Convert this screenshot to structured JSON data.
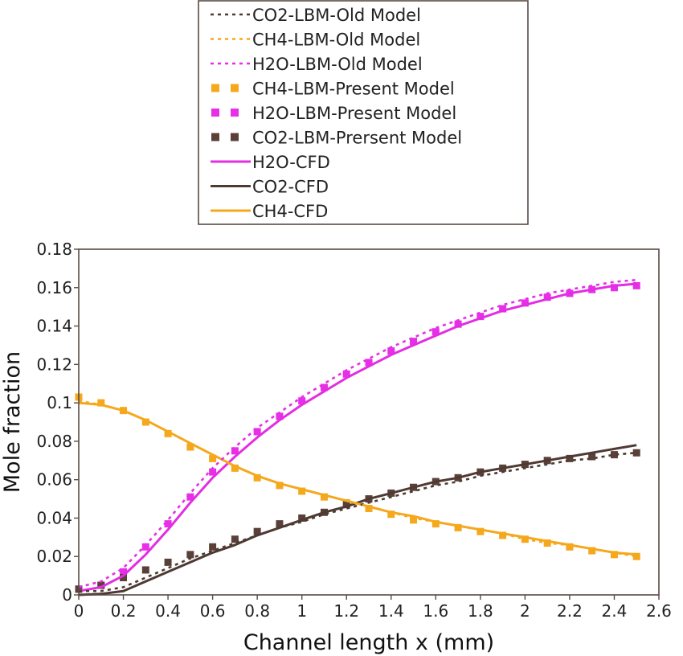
{
  "chart_data": {
    "type": "line",
    "xlabel": "Channel length x (mm)",
    "ylabel": "Mole fraction",
    "xlim": [
      0,
      2.6
    ],
    "ylim": [
      0,
      0.18
    ],
    "xticks": [
      0,
      0.2,
      0.4,
      0.6,
      0.8,
      1,
      1.2,
      1.4,
      1.6,
      1.8,
      2,
      2.2,
      2.4,
      2.6
    ],
    "yticks": [
      0,
      0.02,
      0.04,
      0.06,
      0.08,
      0.1,
      0.12,
      0.14,
      0.16,
      0.18
    ],
    "ytick_labels": [
      "0",
      "0.02",
      "0.04",
      "0.06",
      "0.08",
      "0.1",
      "0.12",
      "0.14",
      "0.16",
      "0.18"
    ],
    "grid": false,
    "legend_position": "top-center",
    "x": [
      0,
      0.1,
      0.2,
      0.3,
      0.4,
      0.5,
      0.6,
      0.7,
      0.8,
      0.9,
      1.0,
      1.1,
      1.2,
      1.3,
      1.4,
      1.5,
      1.6,
      1.7,
      1.8,
      1.9,
      2.0,
      2.1,
      2.2,
      2.3,
      2.4,
      2.5
    ],
    "series": [
      {
        "name": "CO2-LBM-Old Model",
        "color": "#4d3b34",
        "style": "dotted",
        "values": [
          0.002,
          0.002,
          0.004,
          0.009,
          0.014,
          0.019,
          0.023,
          0.027,
          0.031,
          0.035,
          0.038,
          0.042,
          0.045,
          0.048,
          0.051,
          0.054,
          0.057,
          0.059,
          0.062,
          0.064,
          0.066,
          0.068,
          0.07,
          0.071,
          0.073,
          0.074
        ]
      },
      {
        "name": "CH4-LBM-Old Model",
        "color": "#f5a81c",
        "style": "dotted",
        "values": [
          0.101,
          0.099,
          0.096,
          0.091,
          0.085,
          0.079,
          0.073,
          0.067,
          0.062,
          0.058,
          0.055,
          0.052,
          0.049,
          0.046,
          0.043,
          0.04,
          0.038,
          0.036,
          0.034,
          0.032,
          0.029,
          0.027,
          0.026,
          0.024,
          0.022,
          0.02
        ]
      },
      {
        "name": "H2O-LBM-Old Model",
        "color": "#e62fe6",
        "style": "dotted",
        "values": [
          0.004,
          0.007,
          0.014,
          0.026,
          0.039,
          0.053,
          0.066,
          0.077,
          0.087,
          0.095,
          0.103,
          0.11,
          0.117,
          0.123,
          0.129,
          0.134,
          0.139,
          0.143,
          0.147,
          0.151,
          0.154,
          0.157,
          0.159,
          0.161,
          0.163,
          0.164
        ]
      },
      {
        "name": "CH4-LBM-Present Model",
        "color": "#f5a81c",
        "style": "square",
        "values": [
          0.103,
          0.1,
          0.096,
          0.09,
          0.084,
          0.077,
          0.071,
          0.066,
          0.061,
          0.057,
          0.054,
          0.051,
          0.048,
          0.045,
          0.042,
          0.039,
          0.037,
          0.035,
          0.033,
          0.031,
          0.029,
          0.027,
          0.025,
          0.023,
          0.021,
          0.02
        ]
      },
      {
        "name": "H2O-LBM-Present Model",
        "color": "#e62fe6",
        "style": "square",
        "values": [
          0.003,
          0.005,
          0.012,
          0.025,
          0.037,
          0.051,
          0.064,
          0.075,
          0.085,
          0.093,
          0.101,
          0.108,
          0.115,
          0.121,
          0.127,
          0.132,
          0.137,
          0.141,
          0.145,
          0.149,
          0.152,
          0.155,
          0.157,
          0.159,
          0.16,
          0.161
        ]
      },
      {
        "name": "CO2-LBM-Prersent Model",
        "color": "#5a4038",
        "style": "square",
        "values": [
          0.003,
          0.005,
          0.009,
          0.013,
          0.017,
          0.021,
          0.025,
          0.029,
          0.033,
          0.037,
          0.04,
          0.043,
          0.047,
          0.05,
          0.053,
          0.056,
          0.059,
          0.061,
          0.064,
          0.066,
          0.068,
          0.07,
          0.071,
          0.072,
          0.073,
          0.074
        ]
      },
      {
        "name": "H2O-CFD",
        "color": "#e32de3",
        "style": "solid",
        "values": [
          0.002,
          0.004,
          0.01,
          0.021,
          0.034,
          0.048,
          0.061,
          0.072,
          0.082,
          0.091,
          0.099,
          0.106,
          0.113,
          0.119,
          0.125,
          0.13,
          0.135,
          0.14,
          0.144,
          0.148,
          0.151,
          0.154,
          0.157,
          0.159,
          0.161,
          0.162
        ]
      },
      {
        "name": "CO2-CFD",
        "color": "#4f3a33",
        "style": "solid",
        "values": [
          0.0,
          0.0005,
          0.002,
          0.007,
          0.012,
          0.017,
          0.022,
          0.026,
          0.031,
          0.035,
          0.039,
          0.043,
          0.046,
          0.05,
          0.053,
          0.056,
          0.059,
          0.061,
          0.064,
          0.066,
          0.068,
          0.07,
          0.072,
          0.074,
          0.076,
          0.078
        ]
      },
      {
        "name": "CH4-CFD",
        "color": "#f5a81c",
        "style": "solid",
        "values": [
          0.1,
          0.099,
          0.096,
          0.091,
          0.085,
          0.079,
          0.073,
          0.067,
          0.062,
          0.058,
          0.055,
          0.052,
          0.049,
          0.046,
          0.043,
          0.041,
          0.038,
          0.036,
          0.034,
          0.032,
          0.03,
          0.028,
          0.026,
          0.024,
          0.022,
          0.021
        ]
      }
    ]
  }
}
